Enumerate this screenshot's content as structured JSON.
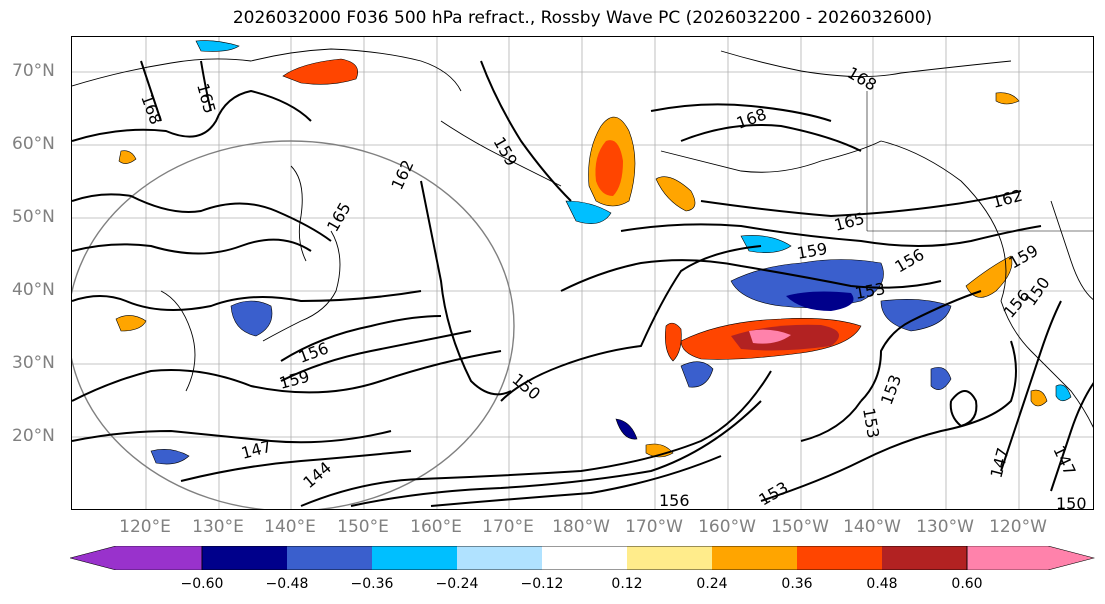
{
  "title": "2026032000 F036 500 hPa refract., Rossby Wave PC (2026032200 - 2026032600)",
  "lat_labels": [
    "70°N",
    "60°N",
    "50°N",
    "40°N",
    "30°N",
    "20°N"
  ],
  "lon_labels": [
    "120°E",
    "130°E",
    "140°E",
    "150°E",
    "160°E",
    "170°E",
    "180°W",
    "170°W",
    "160°W",
    "150°W",
    "140°W",
    "130°W",
    "120°W"
  ],
  "colorbar": {
    "ticks": [
      "−0.60",
      "−0.48",
      "−0.36",
      "−0.24",
      "−0.12",
      "0.12",
      "0.24",
      "0.36",
      "0.48",
      "0.60"
    ],
    "colors": [
      "#9932cc",
      "#00008b",
      "#3a5fcd",
      "#00bfff",
      "#b0e2ff",
      "#ffffff",
      "#ffec8b",
      "#ffa500",
      "#ff4500",
      "#b22222",
      "#ff82ab"
    ]
  },
  "contour_labels": [
    "168",
    "165",
    "168",
    "168",
    "159",
    "162",
    "165",
    "162",
    "165",
    "159",
    "156",
    "153",
    "156",
    "159",
    "150",
    "159",
    "156",
    "150",
    "153",
    "153",
    "147",
    "144",
    "156",
    "153",
    "147",
    "147",
    "150"
  ],
  "shading_colors": {
    "neg_strong": "#00008b",
    "neg_mid": "#3a5fcd",
    "neg_light": "#00bfff",
    "pos_light": "#ffec8b",
    "pos_mid": "#ffa500",
    "pos_strong": "#ff4500",
    "pos_max": "#b22222",
    "pos_extreme": "#ff82ab"
  },
  "icons": {
    "colorbar_min_extension": "triangle-left",
    "colorbar_max_extension": "triangle-right"
  }
}
